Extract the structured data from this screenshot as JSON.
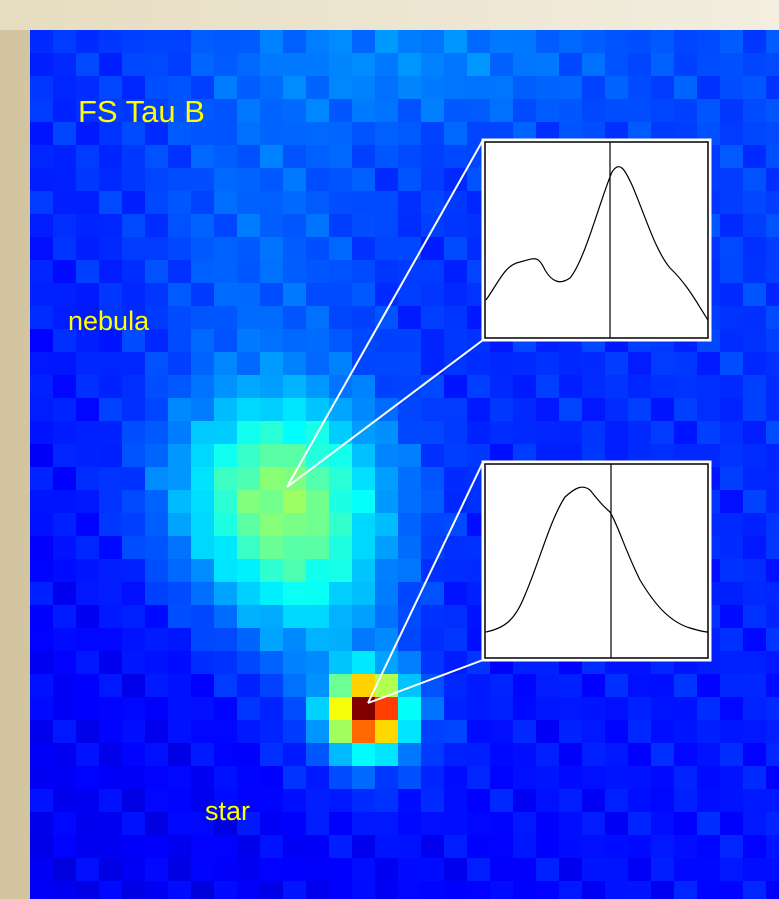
{
  "title": "FS Tau B",
  "annotations": [
    "nebula",
    "star"
  ]
}
